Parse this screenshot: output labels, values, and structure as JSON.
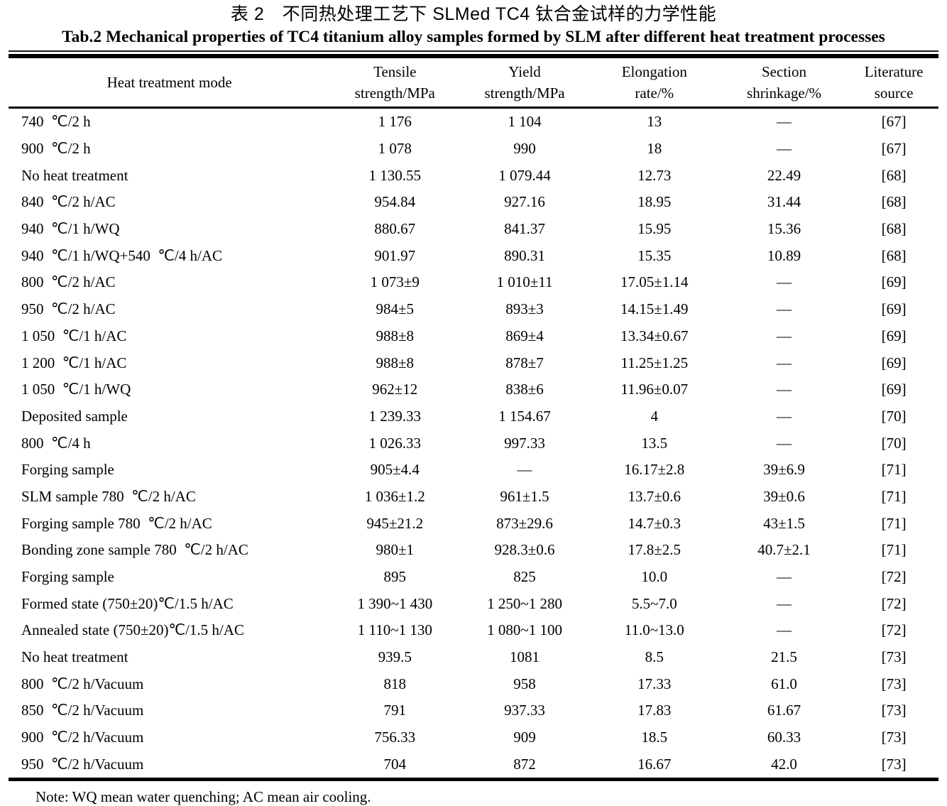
{
  "titles": {
    "zh": "表 2　不同热处理工艺下 SLMed TC4 钛合金试样的力学性能",
    "en": "Tab.2 Mechanical properties of TC4 titanium alloy samples formed by SLM after different heat treatment processes"
  },
  "table": {
    "columns": [
      {
        "key": "heat-treatment-mode",
        "line1": "Heat treatment mode",
        "line2": ""
      },
      {
        "key": "tensile-strength",
        "line1": "Tensile",
        "line2": "strength/MPa"
      },
      {
        "key": "yield-strength",
        "line1": "Yield",
        "line2": "strength/MPa"
      },
      {
        "key": "elongation-rate",
        "line1": "Elongation",
        "line2": "rate/%"
      },
      {
        "key": "section-shrinkage",
        "line1": "Section",
        "line2": "shrinkage/%"
      },
      {
        "key": "literature-source",
        "line1": "Literature",
        "line2": "source"
      }
    ],
    "rows": [
      [
        "740  ℃/2 h",
        "1 176",
        "1 104",
        "13",
        "—",
        "[67]"
      ],
      [
        "900  ℃/2 h",
        "1 078",
        "990",
        "18",
        "—",
        "[67]"
      ],
      [
        "No heat treatment",
        "1 130.55",
        "1 079.44",
        "12.73",
        "22.49",
        "[68]"
      ],
      [
        "840  ℃/2 h/AC",
        "954.84",
        "927.16",
        "18.95",
        "31.44",
        "[68]"
      ],
      [
        "940  ℃/1 h/WQ",
        "880.67",
        "841.37",
        "15.95",
        "15.36",
        "[68]"
      ],
      [
        "940  ℃/1 h/WQ+540  ℃/4 h/AC",
        "901.97",
        "890.31",
        "15.35",
        "10.89",
        "[68]"
      ],
      [
        "800  ℃/2 h/AC",
        "1 073±9",
        "1 010±11",
        "17.05±1.14",
        "—",
        "[69]"
      ],
      [
        "950  ℃/2 h/AC",
        "984±5",
        "893±3",
        "14.15±1.49",
        "—",
        "[69]"
      ],
      [
        "1 050  ℃/1 h/AC",
        "988±8",
        "869±4",
        "13.34±0.67",
        "—",
        "[69]"
      ],
      [
        "1 200  ℃/1 h/AC",
        "988±8",
        "878±7",
        "11.25±1.25",
        "—",
        "[69]"
      ],
      [
        "1 050  ℃/1 h/WQ",
        "962±12",
        "838±6",
        "11.96±0.07",
        "—",
        "[69]"
      ],
      [
        "Deposited sample",
        "1 239.33",
        "1 154.67",
        "4",
        "—",
        "[70]"
      ],
      [
        "800  ℃/4 h",
        "1 026.33",
        "997.33",
        "13.5",
        "—",
        "[70]"
      ],
      [
        "Forging sample",
        "905±4.4",
        "—",
        "16.17±2.8",
        "39±6.9",
        "[71]"
      ],
      [
        "SLM sample 780  ℃/2 h/AC",
        "1 036±1.2",
        "961±1.5",
        "13.7±0.6",
        "39±0.6",
        "[71]"
      ],
      [
        "Forging sample 780  ℃/2 h/AC",
        "945±21.2",
        "873±29.6",
        "14.7±0.3",
        "43±1.5",
        "[71]"
      ],
      [
        "Bonding zone sample 780  ℃/2 h/AC",
        "980±1",
        "928.3±0.6",
        "17.8±2.5",
        "40.7±2.1",
        "[71]"
      ],
      [
        "Forging sample",
        "895",
        "825",
        "10.0",
        "—",
        "[72]"
      ],
      [
        "Formed state (750±20)℃/1.5 h/AC",
        "1 390~1 430",
        "1 250~1 280",
        "5.5~7.0",
        "—",
        "[72]"
      ],
      [
        "Annealed state (750±20)℃/1.5 h/AC",
        "1 110~1 130",
        "1 080~1 100",
        "11.0~13.0",
        "—",
        "[72]"
      ],
      [
        "No heat treatment",
        "939.5",
        "1081",
        "8.5",
        "21.5",
        "[73]"
      ],
      [
        "800  ℃/2 h/Vacuum",
        "818",
        "958",
        "17.33",
        "61.0",
        "[73]"
      ],
      [
        "850  ℃/2 h/Vacuum",
        "791",
        "937.33",
        "17.83",
        "61.67",
        "[73]"
      ],
      [
        "900  ℃/2 h/Vacuum",
        "756.33",
        "909",
        "18.5",
        "60.33",
        "[73]"
      ],
      [
        "950  ℃/2 h/Vacuum",
        "704",
        "872",
        "16.67",
        "42.0",
        "[73]"
      ]
    ]
  },
  "note": "Note: WQ mean water quenching; AC mean air cooling."
}
